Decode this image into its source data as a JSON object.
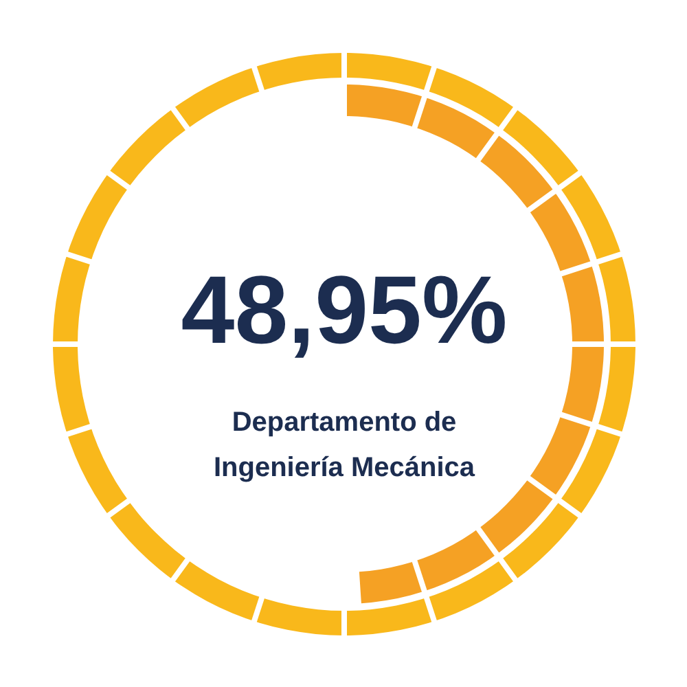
{
  "chart_data": {
    "type": "donut",
    "categories": [
      null
    ],
    "series": [
      {
        "values": [
          100
        ],
        "color": "#f9b81b"
      },
      {
        "values": [
          48.95
        ],
        "color": "#f5a124",
        "value_labels": [
          "48,95%"
        ]
      }
    ],
    "annotations": [
      "Departamento de Ingeniería Mecánica"
    ]
  }
}
